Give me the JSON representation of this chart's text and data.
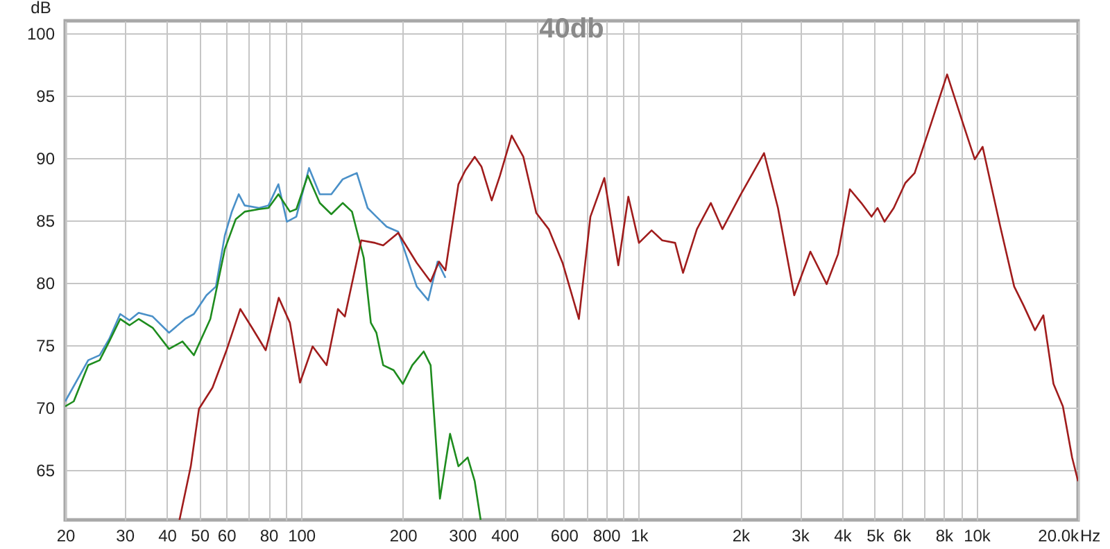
{
  "chart_data": {
    "type": "line",
    "title": "40db",
    "ylabel": "dB",
    "log": "x",
    "grid": true,
    "xlim": [
      20,
      20000
    ],
    "ylim": [
      61,
      101
    ],
    "xticks": [
      20,
      30,
      40,
      50,
      60,
      {
        "value": 70,
        "label": null
      },
      80,
      {
        "value": 90,
        "label": null
      },
      100,
      200,
      300,
      400,
      {
        "value": 500,
        "label": null
      },
      600,
      {
        "value": 700,
        "label": null
      },
      800,
      {
        "value": 900,
        "label": null
      },
      {
        "value": 1000,
        "label": "1k"
      },
      {
        "value": 2000,
        "label": "2k"
      },
      {
        "value": 3000,
        "label": "3k"
      },
      {
        "value": 4000,
        "label": "4k"
      },
      {
        "value": 5000,
        "label": "5k"
      },
      {
        "value": 6000,
        "label": "6k"
      },
      {
        "value": 7000,
        "label": null
      },
      {
        "value": 8000,
        "label": "8k"
      },
      {
        "value": 9000,
        "label": null
      },
      {
        "value": 10000,
        "label": "10k"
      },
      {
        "value": 20000,
        "label": "20.0k"
      }
    ],
    "xlabel": "Hz",
    "yticks": [
      65,
      70,
      75,
      80,
      85,
      90,
      95,
      100
    ],
    "series": [
      {
        "color": "#4a90c8",
        "x": [
          20,
          23.4,
          25.3,
          27,
          29.1,
          31,
          33,
          36.3,
          40.6,
          45.3,
          48.1,
          52.4,
          55.9,
          59.4,
          62.3,
          65.3,
          68,
          75,
          80,
          85.6,
          90.7,
          96.7,
          105.5,
          113.5,
          122.8,
          132.7,
          146.1,
          157.3,
          167,
          179,
          193.8,
          219.9,
          237.8,
          253.5,
          267.4
        ],
        "values": [
          70.5,
          73.8,
          74.2,
          75.5,
          77.5,
          77,
          77.6,
          77.3,
          76,
          77.1,
          77.5,
          79,
          79.7,
          83.8,
          85.7,
          87.1,
          86.2,
          86,
          86.2,
          87.9,
          84.9,
          85.3,
          89.2,
          87.1,
          87.1,
          88.3,
          88.8,
          86,
          85.3,
          84.5,
          84.1,
          79.7,
          78.6,
          81.7,
          80.4
        ]
      },
      {
        "color": "#1e8c1e",
        "x": [
          20,
          21.2,
          23.4,
          25.3,
          27,
          29.1,
          31,
          33,
          36.3,
          40.6,
          44.5,
          48.1,
          53.8,
          59.4,
          64,
          68,
          75,
          80,
          85.6,
          92.6,
          96.7,
          104.6,
          113.5,
          122.8,
          132.7,
          141.4,
          153.2,
          160.8,
          167,
          174.9,
          187.8,
          200,
          213.3,
          230.6,
          241.7,
          257.6,
          276,
          292.2,
          311.3,
          326.5,
          340
        ],
        "values": [
          70.1,
          70.5,
          73.4,
          73.8,
          75.3,
          77.1,
          76.6,
          77.1,
          76.4,
          74.7,
          75.3,
          74.2,
          77.1,
          82.7,
          85.1,
          85.7,
          85.9,
          86,
          87.1,
          85.7,
          85.9,
          88.6,
          86.4,
          85.5,
          86.4,
          85.7,
          82,
          76.8,
          76,
          73.4,
          73,
          71.9,
          73.4,
          74.5,
          73.4,
          62.7,
          67.9,
          65.3,
          66,
          64.1,
          61
        ]
      },
      {
        "color": "#a01c1c",
        "x": [
          43.6,
          47.1,
          49.8,
          54.6,
          60.1,
          66,
          71.5,
          78.5,
          85.8,
          92.6,
          99.2,
          108.1,
          118.9,
          128.5,
          134.7,
          150.6,
          165.5,
          174.9,
          193.8,
          219.9,
          241.7,
          256,
          267.4,
          292.2,
          306.2,
          326.5,
          342,
          366.7,
          388,
          420.2,
          454.9,
          496.9,
          541,
          594.5,
          664.5,
          718.8,
          790.5,
          869.4,
          931,
          1001,
          1091,
          1173,
          1281,
          1352,
          1486,
          1634,
          1768,
          2006,
          2349,
          2583,
          2886,
          3222,
          3600,
          3891,
          4217,
          4560,
          4888,
          5095,
          5343,
          5690,
          6155,
          6561,
          7326,
          8187,
          9141,
          9886,
          10430,
          11766,
          12935,
          13780,
          14910,
          15780,
          16910,
          18030,
          19200,
          20000
        ],
        "values": [
          61,
          65.3,
          69.9,
          71.6,
          74.6,
          77.9,
          76.4,
          74.6,
          78.8,
          76.8,
          72,
          74.9,
          73.4,
          77.9,
          77.3,
          83.4,
          83.2,
          83,
          84,
          81.6,
          80.1,
          81.7,
          81,
          87.9,
          89,
          90.1,
          89.3,
          86.6,
          88.6,
          91.8,
          90.1,
          85.6,
          84.3,
          81.6,
          77.1,
          85.3,
          88.4,
          81.4,
          86.9,
          83.2,
          84.2,
          83.4,
          83.2,
          80.8,
          84.3,
          86.4,
          84.3,
          87.1,
          90.4,
          86,
          79,
          82.5,
          79.9,
          82.3,
          87.5,
          86.4,
          85.3,
          86,
          84.9,
          86,
          88,
          88.8,
          92.7,
          96.7,
          92.7,
          89.9,
          90.9,
          84.5,
          79.7,
          78.2,
          76.2,
          77.4,
          71.9,
          70.1,
          66,
          64.1
        ]
      }
    ]
  }
}
